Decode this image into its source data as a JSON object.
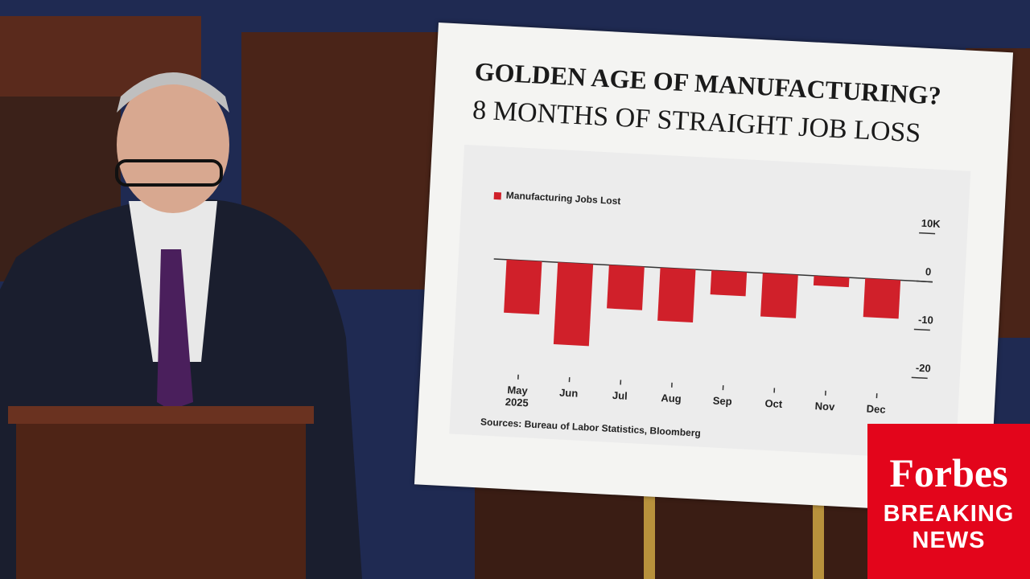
{
  "chart_data": {
    "type": "bar",
    "title": "GOLDEN AGE OF MANUFACTURING?",
    "subtitle": "8 MONTHS OF STRAIGHT JOB LOSS",
    "categories": [
      "May 2025",
      "Jun",
      "Jul",
      "Aug",
      "Sep",
      "Oct",
      "Nov",
      "Dec"
    ],
    "series": [
      {
        "name": "Manufacturing Jobs Lost",
        "color": "#d0202a",
        "values": [
          -11,
          -17,
          -9,
          -11,
          -5,
          -9,
          -2,
          -8
        ]
      }
    ],
    "ylim": [
      -20,
      10
    ],
    "yticks": [
      -20,
      -10,
      0,
      {
        "value": 10,
        "label": "10K"
      }
    ],
    "source": "Sources: Bureau of Labor Statistics, Bloomberg"
  },
  "overlay": {
    "brand": "Forbes",
    "line1": "BREAKING",
    "line2": "NEWS"
  }
}
